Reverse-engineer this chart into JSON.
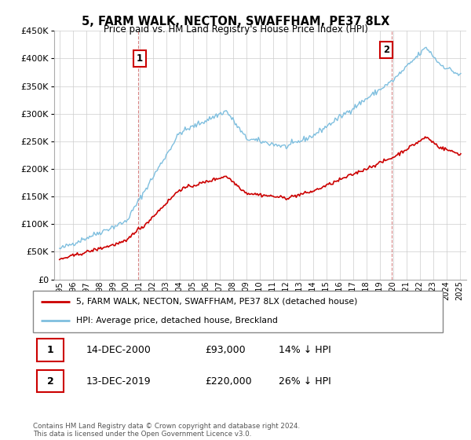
{
  "title": "5, FARM WALK, NECTON, SWAFFHAM, PE37 8LX",
  "subtitle": "Price paid vs. HM Land Registry's House Price Index (HPI)",
  "ylim": [
    0,
    450000
  ],
  "yticks": [
    0,
    50000,
    100000,
    150000,
    200000,
    250000,
    300000,
    350000,
    400000,
    450000
  ],
  "hpi_color": "#7fbfdf",
  "price_color": "#cc0000",
  "legend_line1": "5, FARM WALK, NECTON, SWAFFHAM, PE37 8LX (detached house)",
  "legend_line2": "HPI: Average price, detached house, Breckland",
  "table_row1": [
    "1",
    "14-DEC-2000",
    "£93,000",
    "14% ↓ HPI"
  ],
  "table_row2": [
    "2",
    "13-DEC-2019",
    "£220,000",
    "26% ↓ HPI"
  ],
  "footnote": "Contains HM Land Registry data © Crown copyright and database right 2024.\nThis data is licensed under the Open Government Licence v3.0.",
  "background_color": "#ffffff",
  "grid_color": "#cccccc"
}
